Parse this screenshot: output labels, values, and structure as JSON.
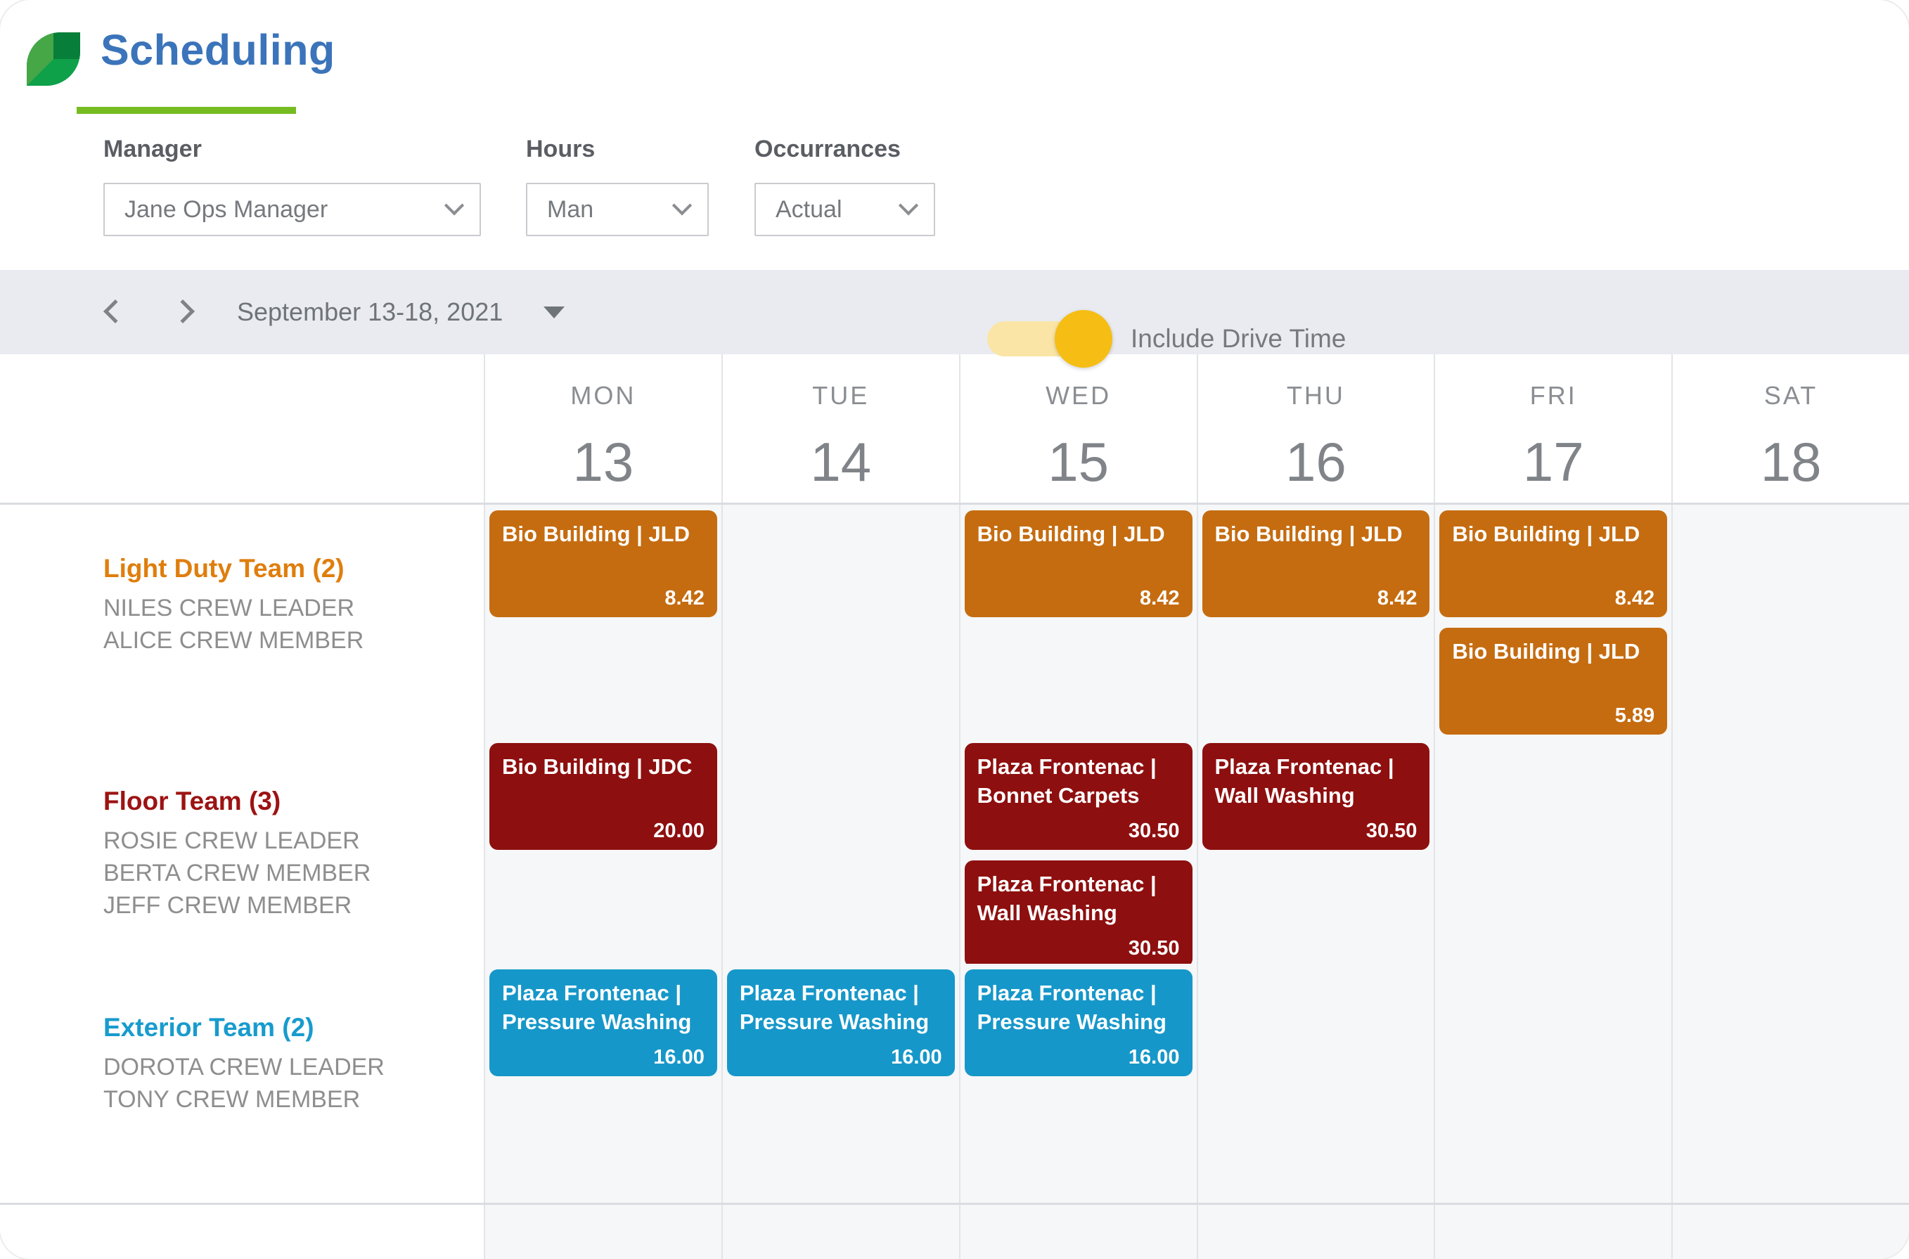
{
  "app": {
    "title": "Scheduling"
  },
  "filters": {
    "manager": {
      "label": "Manager",
      "value": "Jane Ops Manager"
    },
    "hours": {
      "label": "Hours",
      "value": "Man"
    },
    "occurrances": {
      "label": "Occurrances",
      "value": "Actual"
    },
    "drive_time": {
      "label": "Include Drive Time",
      "enabled": true
    }
  },
  "date_nav": {
    "range_label": "September 13-18, 2021"
  },
  "calendar": {
    "days": [
      {
        "name": "MON",
        "date": "13"
      },
      {
        "name": "TUE",
        "date": "14"
      },
      {
        "name": "WED",
        "date": "15"
      },
      {
        "name": "THU",
        "date": "16"
      },
      {
        "name": "FRI",
        "date": "17"
      },
      {
        "name": "SAT",
        "date": "18"
      }
    ],
    "teams": [
      {
        "name": "Light Duty Team (2)",
        "members": [
          "NILES CREW LEADER",
          "ALICE CREW MEMBER"
        ],
        "text_color": "#DF7E0D",
        "event_color": "#C56C10",
        "events": [
          {
            "day_index": 0,
            "title": "Bio Building | JLD",
            "value": "8.42"
          },
          {
            "day_index": 2,
            "title": "Bio Building | JLD",
            "value": "8.42"
          },
          {
            "day_index": 3,
            "title": "Bio Building | JLD",
            "value": "8.42"
          },
          {
            "day_index": 4,
            "title": "Bio Building | JLD",
            "value": "8.42"
          },
          {
            "day_index": 4,
            "title": "Bio Building | JLD",
            "value": "5.89"
          }
        ]
      },
      {
        "name": "Floor Team (3)",
        "members": [
          "ROSIE CREW LEADER",
          "BERTA CREW MEMBER",
          "JEFF CREW MEMBER"
        ],
        "text_color": "#9D1313",
        "event_color": "#8E0F0F",
        "events": [
          {
            "day_index": 0,
            "title": "Bio Building | JDC",
            "value": "20.00"
          },
          {
            "day_index": 2,
            "title": "Plaza Frontenac | Bonnet Carpets",
            "value": "30.50"
          },
          {
            "day_index": 2,
            "title": "Plaza Frontenac | Wall Washing",
            "value": "30.50"
          },
          {
            "day_index": 3,
            "title": "Plaza Frontenac | Wall Washing",
            "value": "30.50"
          }
        ]
      },
      {
        "name": "Exterior Team (2)",
        "members": [
          "DOROTA CREW LEADER",
          "TONY CREW MEMBER"
        ],
        "text_color": "#189BCD",
        "event_color": "#1697C9",
        "events": [
          {
            "day_index": 0,
            "title": "Plaza Frontenac | Pressure Washing",
            "value": "16.00"
          },
          {
            "day_index": 1,
            "title": "Plaza Frontenac | Pressure Washing",
            "value": "16.00"
          },
          {
            "day_index": 2,
            "title": "Plaza Frontenac | Pressure Washing",
            "value": "16.00"
          }
        ]
      }
    ]
  },
  "icons": {
    "logo": "leaf-icon",
    "prev": "chevron-left-icon",
    "next": "chevron-right-icon",
    "date_expand": "caret-down-icon",
    "select_expand": "chevron-down-icon"
  },
  "colors": {
    "title_blue": "#3B74BA",
    "underline_green": "#76BC21",
    "logo_green_light": "#46A746",
    "logo_green_mid": "#0FA04A",
    "logo_green_dark": "#077E39",
    "toggle_track_on": "#FAE5A6",
    "toggle_knob_on": "#F6BE15",
    "light_duty_orange": "#C56C10",
    "floor_red": "#8E0F0F",
    "exterior_blue": "#1697C9"
  }
}
